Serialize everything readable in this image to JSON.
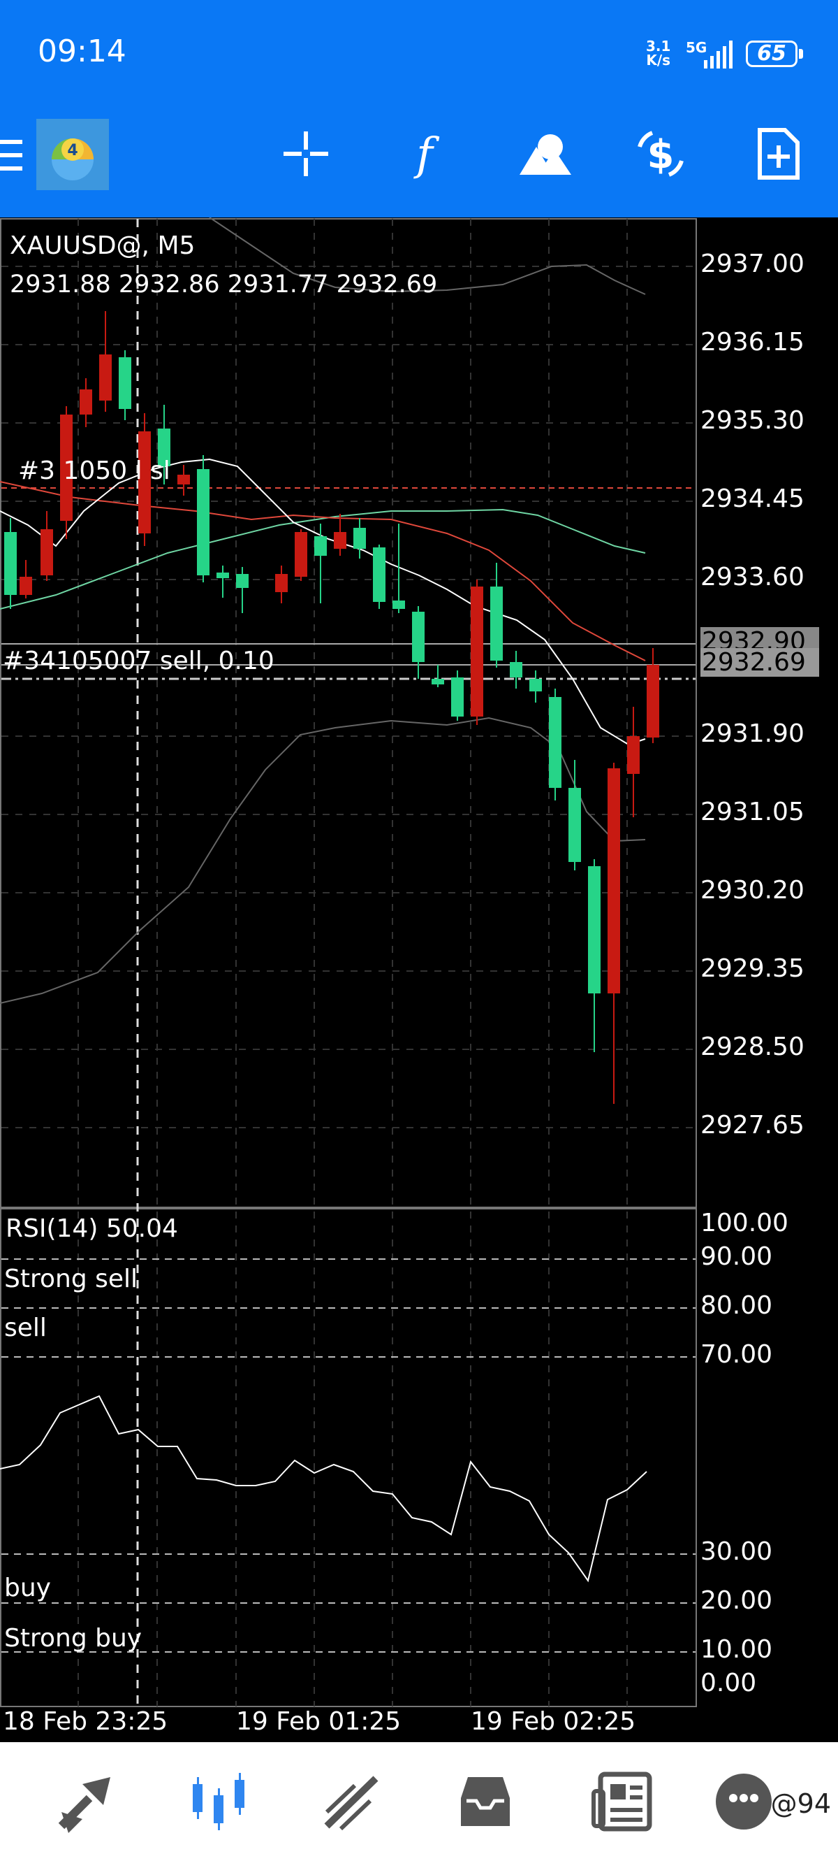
{
  "status_bar": {
    "time": "09:14",
    "net_speed_top": "3.1",
    "net_speed_bottom": "K/s",
    "network": "5G",
    "battery": "65"
  },
  "toolbar": {
    "menu_icon": "hamburger-icon",
    "app_logo": "metatrader-4-logo",
    "icons": [
      "crosshair-icon",
      "indicators-icon",
      "objects-icon",
      "trade-icon",
      "new-order-icon"
    ]
  },
  "chart": {
    "symbol_title": "XAUUSD@, M5",
    "ohlc": "2931.88 2932.86 2931.77 2932.69",
    "order_line_1": "#3  1050  l    sl",
    "order_line_2": "#34105007 sell, 0.10",
    "price_axis": [
      "2937.00",
      "2936.15",
      "2935.30",
      "2934.45",
      "2933.60",
      "2932.90",
      "2932.69",
      "2931.90",
      "2931.05",
      "2930.20",
      "2929.35",
      "2928.50",
      "2927.65"
    ],
    "tag_high": "2932.90",
    "tag_current": "2932.69",
    "colors": {
      "bull": "#26d488",
      "bear": "#c81a12",
      "ma_red": "#e0483b",
      "ma_green": "#6fd6a4"
    }
  },
  "rsi": {
    "title": "RSI(14) 50.04",
    "axis": [
      "100.00",
      "90.00",
      "80.00",
      "70.00",
      "30.00",
      "20.00",
      "10.00",
      "0.00"
    ],
    "levels": {
      "strong_sell": "Strong sell",
      "sell": "sell",
      "buy": "buy",
      "strong_buy": "Strong buy"
    }
  },
  "time_axis": [
    "18 Feb 23:25",
    "19 Feb 01:25",
    "19 Feb 02:25"
  ],
  "bottom_nav": {
    "items": [
      "quotes-icon",
      "chart-icon",
      "trade-icon",
      "history-icon",
      "news-icon",
      "chat-icon"
    ],
    "watermark": "@94"
  }
}
